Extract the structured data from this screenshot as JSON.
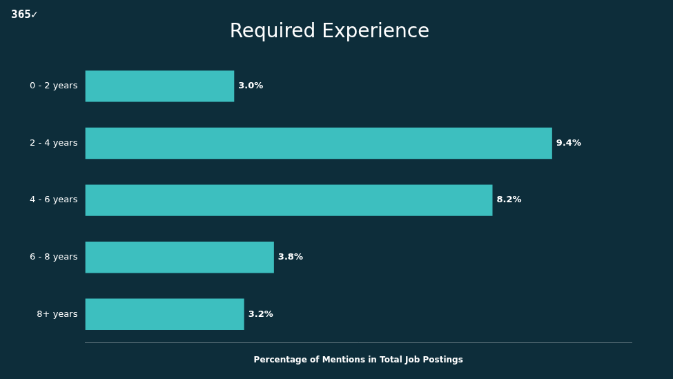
{
  "chart_data": {
    "type": "bar",
    "orientation": "horizontal",
    "title": "Required Experience",
    "xlabel": "Percentage of Mentions in Total Job Postings",
    "categories": [
      "0 - 2 years",
      "2 - 4 years",
      "4 - 6 years",
      "6 - 8 years",
      "8+ years"
    ],
    "values": [
      3.0,
      9.4,
      8.2,
      3.8,
      3.2
    ],
    "value_labels": [
      "3.0%",
      "9.4%",
      "8.2%",
      "3.8%",
      "3.2%"
    ],
    "data_labels": true,
    "color": "#3dbfbf",
    "xlim": [
      0,
      11
    ],
    "grid": false,
    "tick_labels": "y",
    "annotations": [
      "365✓"
    ]
  }
}
